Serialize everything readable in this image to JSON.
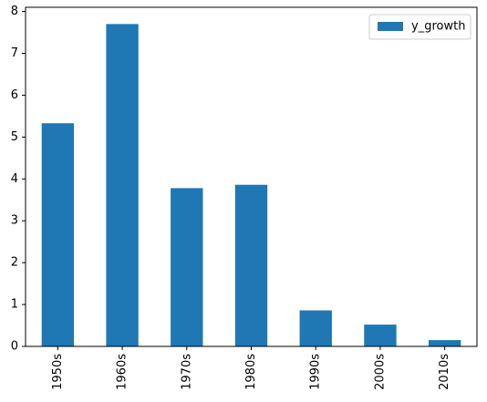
{
  "chart_data": {
    "type": "bar",
    "categories": [
      "1950s",
      "1960s",
      "1970s",
      "1980s",
      "1990s",
      "2000s",
      "2010s"
    ],
    "series": [
      {
        "name": "y_growth",
        "values": [
          5.33,
          7.7,
          3.78,
          3.86,
          0.86,
          0.52,
          0.15
        ],
        "color": "#1f77b4"
      }
    ],
    "title": "",
    "xlabel": "",
    "ylabel": "",
    "ylim": [
      0,
      8.1
    ],
    "yticks": [
      0,
      1,
      2,
      3,
      4,
      5,
      6,
      7,
      8
    ],
    "grid": false,
    "legend": {
      "position": "top-right"
    },
    "x_tick_rotation": 90
  }
}
